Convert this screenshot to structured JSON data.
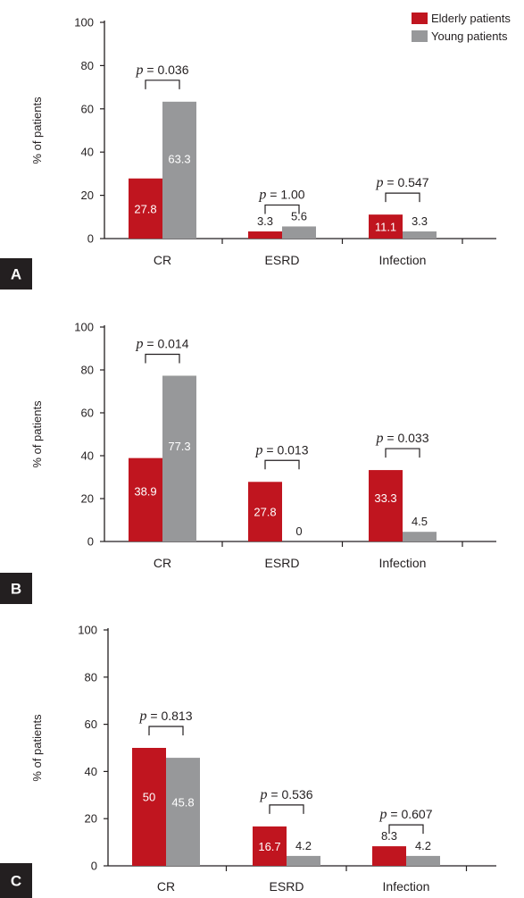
{
  "chart_data": [
    {
      "type": "bar",
      "panel_label": "A",
      "categories": [
        "CR",
        "ESRD",
        "Infection"
      ],
      "ylabel": "% of patients",
      "ylim": [
        0,
        100
      ],
      "yticks": [
        0,
        20,
        40,
        60,
        80,
        100
      ],
      "series": [
        {
          "name": "Elderly patients",
          "color": "#c0151f",
          "values": [
            27.8,
            3.3,
            11.1
          ],
          "labels": [
            "27.8",
            "3.3",
            "11.1"
          ]
        },
        {
          "name": "Young patients",
          "color": "#97989a",
          "values": [
            63.3,
            5.6,
            3.3
          ],
          "labels": [
            "63.3",
            "5.6",
            "3.3"
          ]
        }
      ],
      "pvalues": [
        "p = 0.036",
        "p = 1.00",
        "p = 0.547"
      ],
      "legend": "top-right"
    },
    {
      "type": "bar",
      "panel_label": "B",
      "categories": [
        "CR",
        "ESRD",
        "Infection"
      ],
      "ylabel": "% of patients",
      "ylim": [
        0,
        100
      ],
      "yticks": [
        0,
        20,
        40,
        60,
        80,
        100
      ],
      "series": [
        {
          "name": "Elderly patients",
          "color": "#c0151f",
          "values": [
            38.9,
            27.8,
            33.3
          ],
          "labels": [
            "38.9",
            "27.8",
            "33.3"
          ]
        },
        {
          "name": "Young patients",
          "color": "#97989a",
          "values": [
            77.3,
            0,
            4.5
          ],
          "labels": [
            "77.3",
            "0",
            "4.5"
          ]
        }
      ],
      "pvalues": [
        "p = 0.014",
        "p = 0.013",
        "p = 0.033"
      ]
    },
    {
      "type": "bar",
      "panel_label": "C",
      "categories": [
        "CR",
        "ESRD",
        "Infection"
      ],
      "ylabel": "% of patients",
      "ylim": [
        0,
        100
      ],
      "yticks": [
        0,
        20,
        40,
        60,
        80,
        100
      ],
      "series": [
        {
          "name": "Elderly patients",
          "color": "#c0151f",
          "values": [
            50,
            16.7,
            8.3
          ],
          "labels": [
            "50",
            "16.7",
            "8.3"
          ]
        },
        {
          "name": "Young patients",
          "color": "#97989a",
          "values": [
            45.8,
            4.2,
            4.2
          ],
          "labels": [
            "45.8",
            "4.2",
            "4.2"
          ]
        }
      ],
      "pvalues": [
        "p = 0.813",
        "p = 0.536",
        "p = 0.607"
      ]
    }
  ]
}
